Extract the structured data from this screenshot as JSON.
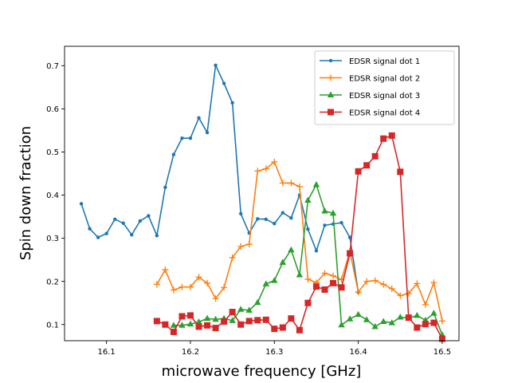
{
  "chart_data": {
    "type": "line",
    "title": "",
    "xlabel": "microwave frequency [GHz]",
    "ylabel": "Spin down fraction",
    "xlim": [
      16.05,
      16.52
    ],
    "ylim": [
      0.0625,
      0.745
    ],
    "xticks": [
      16.1,
      16.2,
      16.3,
      16.4,
      16.5
    ],
    "xtick_labels": [
      "16.1",
      "16.2",
      "16.3",
      "16.4",
      "16.5"
    ],
    "yticks": [
      0.1,
      0.2,
      0.3,
      0.4,
      0.5,
      0.6,
      0.7
    ],
    "ytick_labels": [
      "0.1",
      "0.2",
      "0.3",
      "0.4",
      "0.5",
      "0.6",
      "0.7"
    ],
    "grid": false,
    "legend_position": "upper-right",
    "series": [
      {
        "name": "EDSR signal dot 1",
        "color": "#1f77b4",
        "marker": "dot",
        "x": [
          16.07,
          16.08,
          16.09,
          16.1,
          16.11,
          16.12,
          16.13,
          16.14,
          16.15,
          16.16,
          16.17,
          16.18,
          16.19,
          16.2,
          16.21,
          16.22,
          16.23,
          16.24,
          16.25,
          16.26,
          16.27,
          16.28,
          16.29,
          16.3,
          16.31,
          16.32,
          16.33,
          16.34,
          16.35,
          16.36,
          16.37,
          16.38,
          16.39,
          16.4
        ],
        "values": [
          0.38,
          0.322,
          0.302,
          0.311,
          0.344,
          0.335,
          0.308,
          0.34,
          0.352,
          0.306,
          0.418,
          0.494,
          0.532,
          0.532,
          0.579,
          0.545,
          0.701,
          0.659,
          0.614,
          0.357,
          0.312,
          0.345,
          0.344,
          0.334,
          0.359,
          0.347,
          0.4,
          0.321,
          0.271,
          0.33,
          0.333,
          0.336,
          0.302,
          0.175
        ]
      },
      {
        "name": "EDSR signal dot 2",
        "color": "#ff7f0e",
        "marker": "plus",
        "x": [
          16.16,
          16.17,
          16.18,
          16.19,
          16.2,
          16.21,
          16.22,
          16.23,
          16.24,
          16.25,
          16.26,
          16.27,
          16.28,
          16.29,
          16.3,
          16.31,
          16.32,
          16.33,
          16.34,
          16.35,
          16.36,
          16.37,
          16.38,
          16.39,
          16.4,
          16.41,
          16.42,
          16.43,
          16.44,
          16.45,
          16.46,
          16.47,
          16.48,
          16.49,
          16.5
        ],
        "values": [
          0.193,
          0.227,
          0.18,
          0.187,
          0.187,
          0.21,
          0.196,
          0.16,
          0.186,
          0.255,
          0.281,
          0.286,
          0.456,
          0.461,
          0.477,
          0.428,
          0.428,
          0.42,
          0.205,
          0.197,
          0.219,
          0.213,
          0.204,
          0.27,
          0.175,
          0.2,
          0.202,
          0.193,
          0.183,
          0.167,
          0.172,
          0.195,
          0.146,
          0.197,
          0.108
        ]
      },
      {
        "name": "EDSR signal dot 3",
        "color": "#2ca02c",
        "marker": "triangle",
        "x": [
          16.18,
          16.19,
          16.2,
          16.21,
          16.22,
          16.23,
          16.24,
          16.25,
          16.26,
          16.27,
          16.28,
          16.29,
          16.3,
          16.31,
          16.32,
          16.33,
          16.34,
          16.35,
          16.36,
          16.37,
          16.38,
          16.39,
          16.4,
          16.41,
          16.42,
          16.43,
          16.44,
          16.45,
          16.46,
          16.47,
          16.48,
          16.49,
          16.5
        ],
        "values": [
          0.098,
          0.098,
          0.101,
          0.106,
          0.114,
          0.112,
          0.114,
          0.109,
          0.135,
          0.133,
          0.151,
          0.194,
          0.202,
          0.244,
          0.273,
          0.215,
          0.388,
          0.424,
          0.363,
          0.358,
          0.099,
          0.113,
          0.123,
          0.111,
          0.095,
          0.107,
          0.104,
          0.117,
          0.115,
          0.121,
          0.11,
          0.126,
          0.076
        ]
      },
      {
        "name": "EDSR signal dot 4",
        "color": "#d62728",
        "marker": "square",
        "x": [
          16.16,
          16.17,
          16.18,
          16.19,
          16.2,
          16.21,
          16.22,
          16.23,
          16.24,
          16.25,
          16.26,
          16.27,
          16.28,
          16.29,
          16.3,
          16.31,
          16.32,
          16.33,
          16.34,
          16.35,
          16.36,
          16.37,
          16.38,
          16.39,
          16.4,
          16.41,
          16.42,
          16.43,
          16.44,
          16.45,
          16.46,
          16.47,
          16.48,
          16.49,
          16.5
        ],
        "values": [
          0.108,
          0.1,
          0.083,
          0.119,
          0.121,
          0.095,
          0.098,
          0.092,
          0.107,
          0.129,
          0.1,
          0.108,
          0.11,
          0.111,
          0.09,
          0.093,
          0.114,
          0.087,
          0.15,
          0.188,
          0.181,
          0.196,
          0.186,
          0.265,
          0.455,
          0.469,
          0.49,
          0.531,
          0.538,
          0.454,
          0.116,
          0.093,
          0.101,
          0.104,
          0.067
        ]
      }
    ]
  }
}
